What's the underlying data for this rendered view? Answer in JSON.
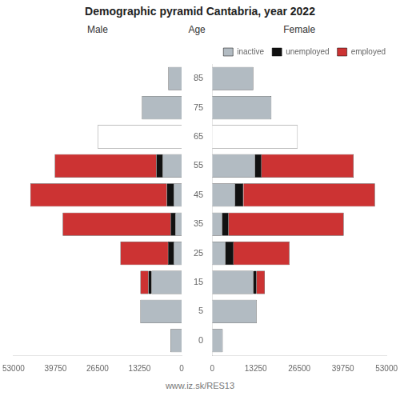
{
  "title": "Demographic pyramid Cantabria, year 2022",
  "annotations": [
    "www.iz.sk/RES13"
  ],
  "chart_data": [
    {
      "type": "bar",
      "orientation": "horizontal",
      "stacked": true,
      "title": "Male",
      "categories": [
        "0",
        "5",
        "15",
        "25",
        "35",
        "45",
        "55",
        "65",
        "75",
        "85"
      ],
      "series": [
        {
          "name": "inactive",
          "color": "#b2bbc2",
          "values": [
            3500,
            13000,
            9500,
            2500,
            2000,
            2500,
            6000,
            null,
            12500,
            4200
          ]
        },
        {
          "name": "unemployed",
          "color": "#111111",
          "values": [
            0,
            0,
            1000,
            1800,
            1500,
            2200,
            2000,
            0,
            0,
            0
          ]
        },
        {
          "name": "employed",
          "color": "#cc3333",
          "values": [
            0,
            0,
            2500,
            15000,
            34000,
            43000,
            32000,
            0,
            0,
            0
          ]
        },
        {
          "color": "#ffffff",
          "values": [
            null,
            null,
            null,
            null,
            null,
            null,
            null,
            26500,
            null,
            null
          ]
        }
      ],
      "xlim": [
        53000,
        0
      ],
      "xticks": [
        53000,
        39750,
        26500,
        13250,
        0
      ],
      "grid": false,
      "tick_labels": "x"
    },
    {
      "type": "bar",
      "orientation": "horizontal",
      "stacked": true,
      "title": "Female",
      "ylabel": "Age",
      "categories": [
        "0",
        "5",
        "15",
        "25",
        "35",
        "45",
        "55",
        "65",
        "75",
        "85"
      ],
      "series": [
        {
          "name": "inactive",
          "color": "#b2bbc2",
          "values": [
            3200,
            13500,
            12500,
            4000,
            3000,
            7000,
            13000,
            null,
            18000,
            12500
          ]
        },
        {
          "name": "unemployed",
          "color": "#111111",
          "values": [
            0,
            0,
            1000,
            2500,
            2000,
            2500,
            2000,
            0,
            0,
            0
          ]
        },
        {
          "name": "employed",
          "color": "#cc3333",
          "values": [
            0,
            0,
            2500,
            17000,
            35000,
            40000,
            28000,
            0,
            0,
            0
          ]
        },
        {
          "color": "#ffffff",
          "values": [
            null,
            null,
            null,
            null,
            null,
            null,
            null,
            26000,
            null,
            null
          ]
        }
      ],
      "xlim": [
        0,
        53000
      ],
      "xticks": [
        0,
        13250,
        26500,
        39750,
        53000
      ],
      "grid": false,
      "legend": "upper right"
    }
  ]
}
